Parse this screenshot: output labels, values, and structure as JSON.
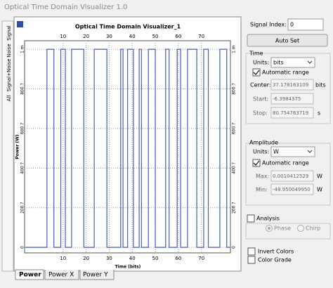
{
  "window_title": "Optical Time Domain Visualizer 1.0",
  "side_tabs": [
    "Signal",
    "Noise",
    "Signal+Noise",
    "All"
  ],
  "bottom_tabs": [
    "Power",
    "Power X",
    "Power Y"
  ],
  "chart_data": {
    "type": "line",
    "title": "Optical Time Domain Visualizer_1",
    "x_label": "Time (bits)",
    "y_label": "Power (W)",
    "xlim": [
      -6.7,
      82.6
    ],
    "xticks": [
      10,
      20,
      30,
      40,
      50,
      60,
      70
    ],
    "ylim": [
      -2.8e-05,
      0.001043
    ],
    "yticks": [
      {
        "value": 0,
        "label": "0"
      },
      {
        "value": 0.0002,
        "label": "200 ?"
      },
      {
        "value": 0.0004,
        "label": "400 ?"
      },
      {
        "value": 0.0006,
        "label": "600 ?"
      },
      {
        "value": 0.0008,
        "label": "800 ?"
      },
      {
        "value": 0.001,
        "label": "1 m"
      }
    ],
    "grid": true,
    "series": [
      {
        "color": "#4a5bb8",
        "x": [
          -6.4,
          3,
          3,
          6,
          6,
          9,
          9,
          11,
          11,
          13.7,
          13.7,
          19,
          19,
          23.5,
          23.5,
          29,
          29,
          35,
          35,
          36,
          36,
          38,
          38,
          40.5,
          40.5,
          43,
          43,
          44,
          44,
          47,
          47,
          50,
          50,
          54.5,
          54.5,
          56,
          56,
          59.5,
          59.5,
          61,
          61,
          64,
          64,
          68,
          68,
          71,
          71,
          73,
          73,
          78,
          78,
          81,
          81,
          82.6
        ],
        "values": [
          0,
          0,
          0.001,
          0.001,
          0,
          0,
          0.001,
          0.001,
          0,
          0,
          0.001,
          0.001,
          0,
          0,
          0.001,
          0.001,
          0,
          0,
          0.001,
          0.001,
          0,
          0,
          0.001,
          0.001,
          0,
          0,
          0.001,
          0.001,
          0,
          0,
          0.001,
          0.001,
          0,
          0,
          0.001,
          0.001,
          0,
          0,
          0.001,
          0.001,
          0,
          0,
          0.001,
          0.001,
          0,
          0,
          0.001,
          0.001,
          0,
          0,
          0.001,
          0.001,
          0,
          0
        ]
      }
    ]
  },
  "panel": {
    "signal_index_label": "Signal Index:",
    "signal_index": "0",
    "auto_set": "Auto Set",
    "time": {
      "title": "Time",
      "units_label": "Units:",
      "units": "bits",
      "auto_range": "Automatic range",
      "center_label": "Center:",
      "center": "37.178163109",
      "center_unit": "bits",
      "start_label": "Start:",
      "start": "-6.3984375",
      "stop_label": "Stop:",
      "stop": "80.754763719",
      "stop_unit": "s"
    },
    "amplitude": {
      "title": "Amplitude",
      "units_label": "Units:",
      "units": "W",
      "auto_range": "Automatic range",
      "max_label": "Max:",
      "max": "0.0010412529",
      "max_unit": "W",
      "min_label": "Min:",
      "min": "-49.950049950",
      "min_unit": "W"
    },
    "analysis": {
      "title": "Analysis",
      "phase": "Phase",
      "chirp": "Chirp"
    },
    "invert_colors": "Invert Colors",
    "color_grade": "Color Grade"
  }
}
